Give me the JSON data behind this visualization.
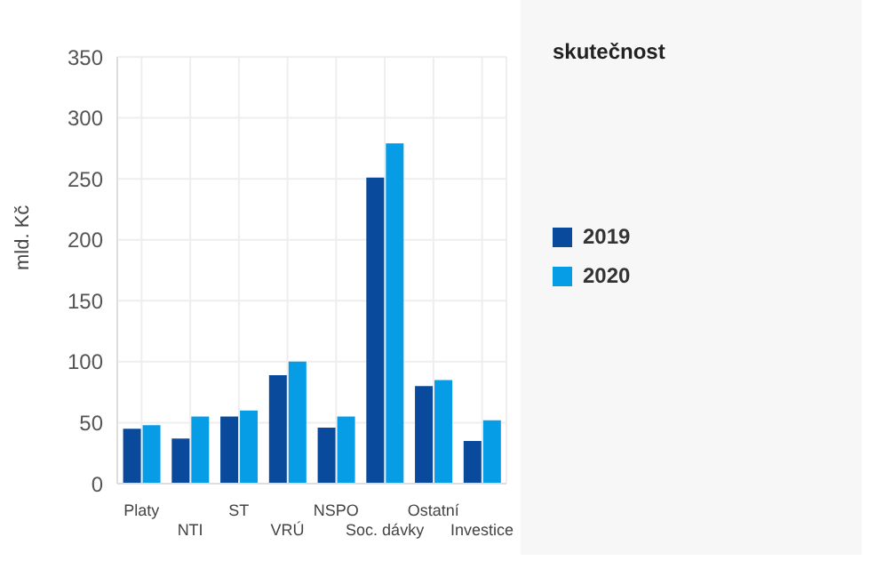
{
  "chart_data": {
    "type": "bar",
    "ylabel": "mld. Kč",
    "legend_title": "skutečnost",
    "categories": [
      "Platy",
      "NTI",
      "ST",
      "VRÚ",
      "NSPO",
      "Soc. dávky",
      "Ostatní",
      "Investice"
    ],
    "series": [
      {
        "name": "2019",
        "color": "#0a4a9c",
        "values": [
          45,
          37,
          55,
          89,
          46,
          251,
          80,
          35
        ]
      },
      {
        "name": "2020",
        "color": "#069de6",
        "values": [
          48,
          55,
          60,
          100,
          55,
          279,
          85,
          52
        ]
      }
    ],
    "ylim": [
      0,
      350
    ],
    "yticks": [
      0,
      50,
      100,
      150,
      200,
      250,
      300,
      350
    ],
    "grid": true,
    "legend": "right"
  }
}
